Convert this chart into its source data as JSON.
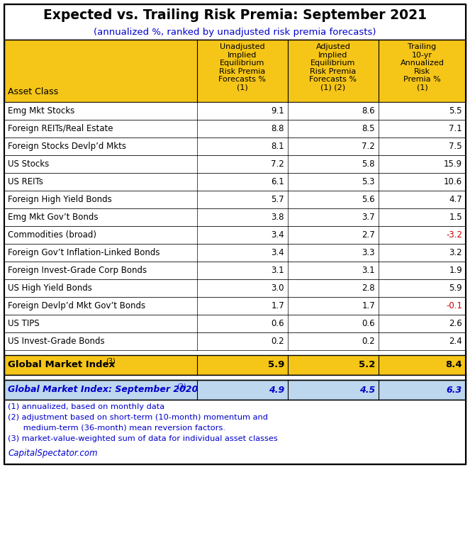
{
  "title": "Expected vs. Trailing Risk Premia: September 2021",
  "subtitle": "(annualized %, ranked by unadjusted risk premia forecasts)",
  "rows": [
    [
      "Emg Mkt Stocks",
      "9.1",
      "8.6",
      "5.5"
    ],
    [
      "Foreign REITs/Real Estate",
      "8.8",
      "8.5",
      "7.1"
    ],
    [
      "Foreign Stocks Devlp’d Mkts",
      "8.1",
      "7.2",
      "7.5"
    ],
    [
      "US Stocks",
      "7.2",
      "5.8",
      "15.9"
    ],
    [
      "US REITs",
      "6.1",
      "5.3",
      "10.6"
    ],
    [
      "Foreign High Yield Bonds",
      "5.7",
      "5.6",
      "4.7"
    ],
    [
      "Emg Mkt Gov’t Bonds",
      "3.8",
      "3.7",
      "1.5"
    ],
    [
      "Commodities (broad)",
      "3.4",
      "2.7",
      "-3.2"
    ],
    [
      "Foreign Gov’t Inflation-Linked Bonds",
      "3.4",
      "3.3",
      "3.2"
    ],
    [
      "Foreign Invest-Grade Corp Bonds",
      "3.1",
      "3.1",
      "1.9"
    ],
    [
      "US High Yield Bonds",
      "3.0",
      "2.8",
      "5.9"
    ],
    [
      "Foreign Devlp’d Mkt Gov’t Bonds",
      "1.7",
      "1.7",
      "-0.1"
    ],
    [
      "US TIPS",
      "0.6",
      "0.6",
      "2.6"
    ],
    [
      "US Invest-Grade Bonds",
      "0.2",
      "0.2",
      "2.4"
    ]
  ],
  "header_col0": "Asset Class",
  "header_col1": "Unadjusted\nImplied\nEquilibrium\nRisk Premia\nForecasts %\n(1)",
  "header_col2": "Adjusted\nImplied\nEquilibrium\nRisk Premia\nForecasts %\n(1) (2)",
  "header_col3": "Trailing\n10-yr\nAnnualized\nRisk\nPremia %\n(1)",
  "gmi_label": "Global Market Index",
  "gmi_super": "(3)",
  "gmi_vals": [
    "5.9",
    "5.2",
    "8.4"
  ],
  "gmi2020_label": "Global Market Index: September 2020",
  "gmi2020_super": "(3)",
  "gmi2020_vals": [
    "4.9",
    "4.5",
    "6.3"
  ],
  "footnotes": [
    "(1) annualized, based on monthly data",
    "(2) adjustment based on short-term (10-month) momentum and",
    "      medium-term (36-month) mean reversion factors.",
    "(3) market-value-weighted sum of data for individual asset classes"
  ],
  "credit": "CapitalSpectator.com",
  "header_bg": "#F5C518",
  "gmi_bg": "#F5C518",
  "gmi2020_bg": "#BDD7EE",
  "neg_color": "#CC0000",
  "pos_color": "#000000",
  "gmi_color": "#000000",
  "gmi2020_color": "#0000CC",
  "fn_color": "#0000CC",
  "credit_color": "#0000CC",
  "title_color": "#000000",
  "subtitle_color": "#0000CC",
  "border_color": "#000000"
}
